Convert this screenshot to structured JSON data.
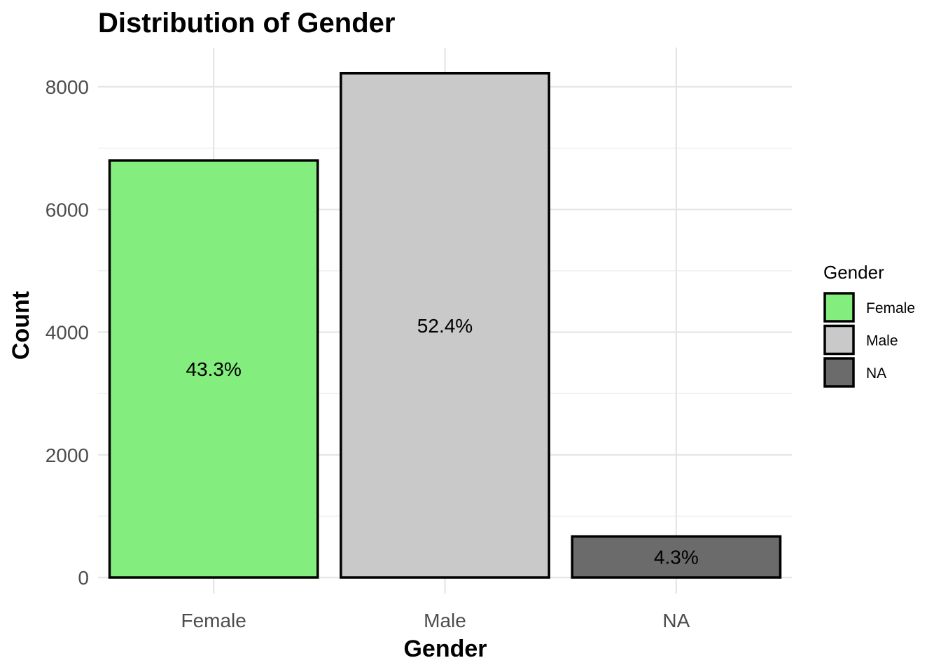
{
  "chart_data": {
    "type": "bar",
    "title": "Distribution of Gender",
    "xlabel": "Gender",
    "ylabel": "Count",
    "categories": [
      "Female",
      "Male",
      "NA"
    ],
    "values": [
      6800,
      8220,
      670
    ],
    "data_labels": [
      "43.3%",
      "52.4%",
      "4.3%"
    ],
    "colors": [
      "#83ed7d",
      "#c9c9c9",
      "#6b6b6b"
    ],
    "ylim": [
      0,
      8400
    ],
    "yticks": [
      0,
      2000,
      4000,
      6000,
      8000
    ],
    "ytick_labels": [
      "0",
      "2000",
      "4000",
      "6000",
      "8000"
    ],
    "grid": true,
    "legend": {
      "title": "Gender",
      "position": "right",
      "entries": [
        "Female",
        "Male",
        "NA"
      ]
    }
  }
}
